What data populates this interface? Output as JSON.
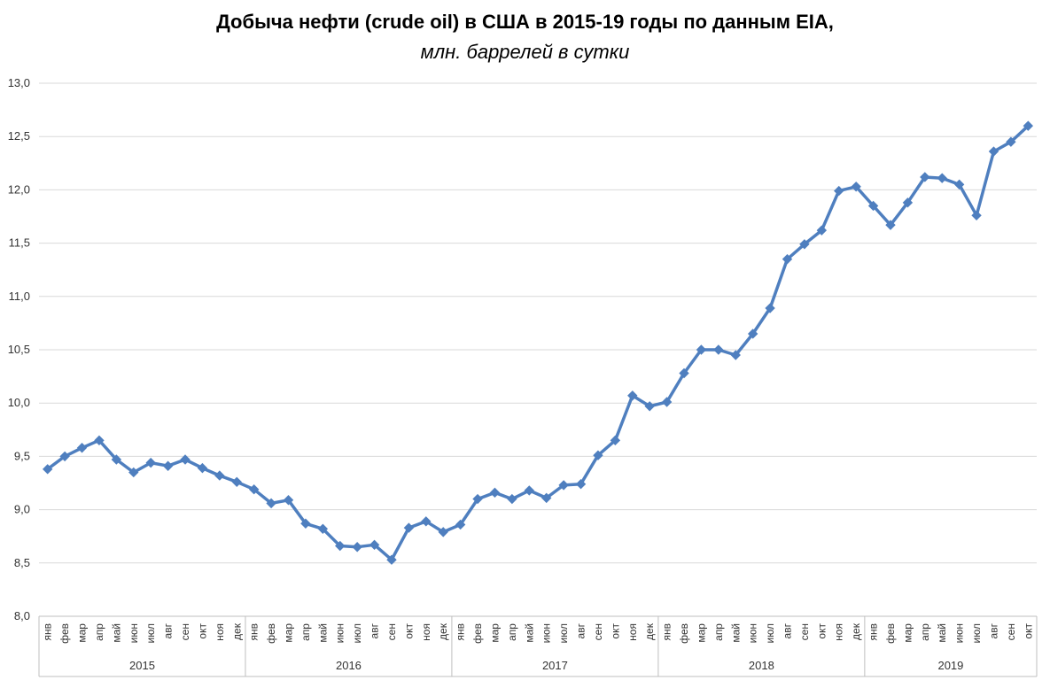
{
  "title": "Добыча нефти (crude oil) в США в 2015-19 годы по данным EIA,",
  "subtitle": "млн. баррелей в сутки",
  "colors": {
    "line": "#4F7FBF",
    "grid": "#D9D9D9",
    "axis": "#BFBFBF",
    "text": "#333333"
  },
  "chart_data": {
    "type": "line",
    "title": "Добыча нефти (crude oil) в США в 2015-19 годы по данным EIA,",
    "subtitle": "млн. баррелей в сутки",
    "ylim": [
      8.0,
      13.0
    ],
    "y_ticks": [
      "8,0",
      "8,5",
      "9,0",
      "9,5",
      "10,0",
      "10,5",
      "11,0",
      "11,5",
      "12,0",
      "12,5",
      "13,0"
    ],
    "grid": true,
    "marker": "diamond",
    "months": [
      "янв",
      "фев",
      "мар",
      "апр",
      "май",
      "июн",
      "июл",
      "авг",
      "сен",
      "окт",
      "ноя",
      "дек"
    ],
    "years": [
      {
        "label": "2015",
        "months": 12
      },
      {
        "label": "2016",
        "months": 12
      },
      {
        "label": "2017",
        "months": 12
      },
      {
        "label": "2018",
        "months": 12
      },
      {
        "label": "2019",
        "months": 10
      }
    ],
    "series": [
      {
        "values": [
          9.38,
          9.5,
          9.58,
          9.65,
          9.47,
          9.35,
          9.44,
          9.41,
          9.47,
          9.39,
          9.32,
          9.26,
          9.19,
          9.06,
          9.09,
          8.87,
          8.82,
          8.66,
          8.65,
          8.67,
          8.53,
          8.83,
          8.89,
          8.79,
          8.86,
          9.1,
          9.16,
          9.1,
          9.18,
          9.11,
          9.23,
          9.24,
          9.51,
          9.65,
          10.07,
          9.97,
          10.01,
          10.28,
          10.5,
          10.5,
          10.45,
          10.65,
          10.89,
          11.35,
          11.49,
          11.62,
          11.99,
          12.03,
          11.85,
          11.67,
          11.88,
          12.12,
          12.11,
          12.05,
          11.76,
          12.36,
          12.45,
          12.6
        ]
      }
    ]
  }
}
